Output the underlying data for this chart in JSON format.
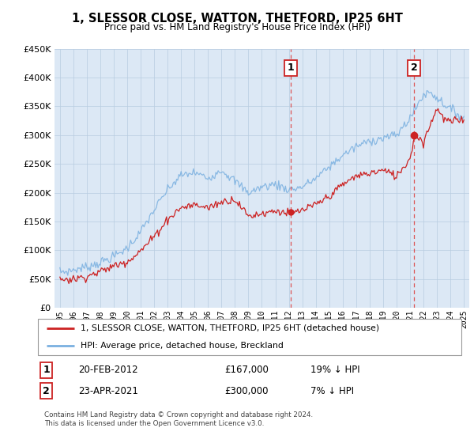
{
  "title": "1, SLESSOR CLOSE, WATTON, THETFORD, IP25 6HT",
  "subtitle": "Price paid vs. HM Land Registry's House Price Index (HPI)",
  "hpi_color": "#7ab0e0",
  "property_color": "#cc2222",
  "dashed_color": "#dd4444",
  "background_color": "#dce8f5",
  "ylim": [
    0,
    450000
  ],
  "yticks": [
    0,
    50000,
    100000,
    150000,
    200000,
    250000,
    300000,
    350000,
    400000,
    450000
  ],
  "point1_year": 2012.12,
  "point1_value": 167000,
  "point1_label": "1",
  "point2_year": 2021.31,
  "point2_value": 300000,
  "point2_label": "2",
  "legend_property": "1, SLESSOR CLOSE, WATTON, THETFORD, IP25 6HT (detached house)",
  "legend_hpi": "HPI: Average price, detached house, Breckland",
  "footer1": "Contains HM Land Registry data © Crown copyright and database right 2024.",
  "footer2": "This data is licensed under the Open Government Licence v3.0."
}
